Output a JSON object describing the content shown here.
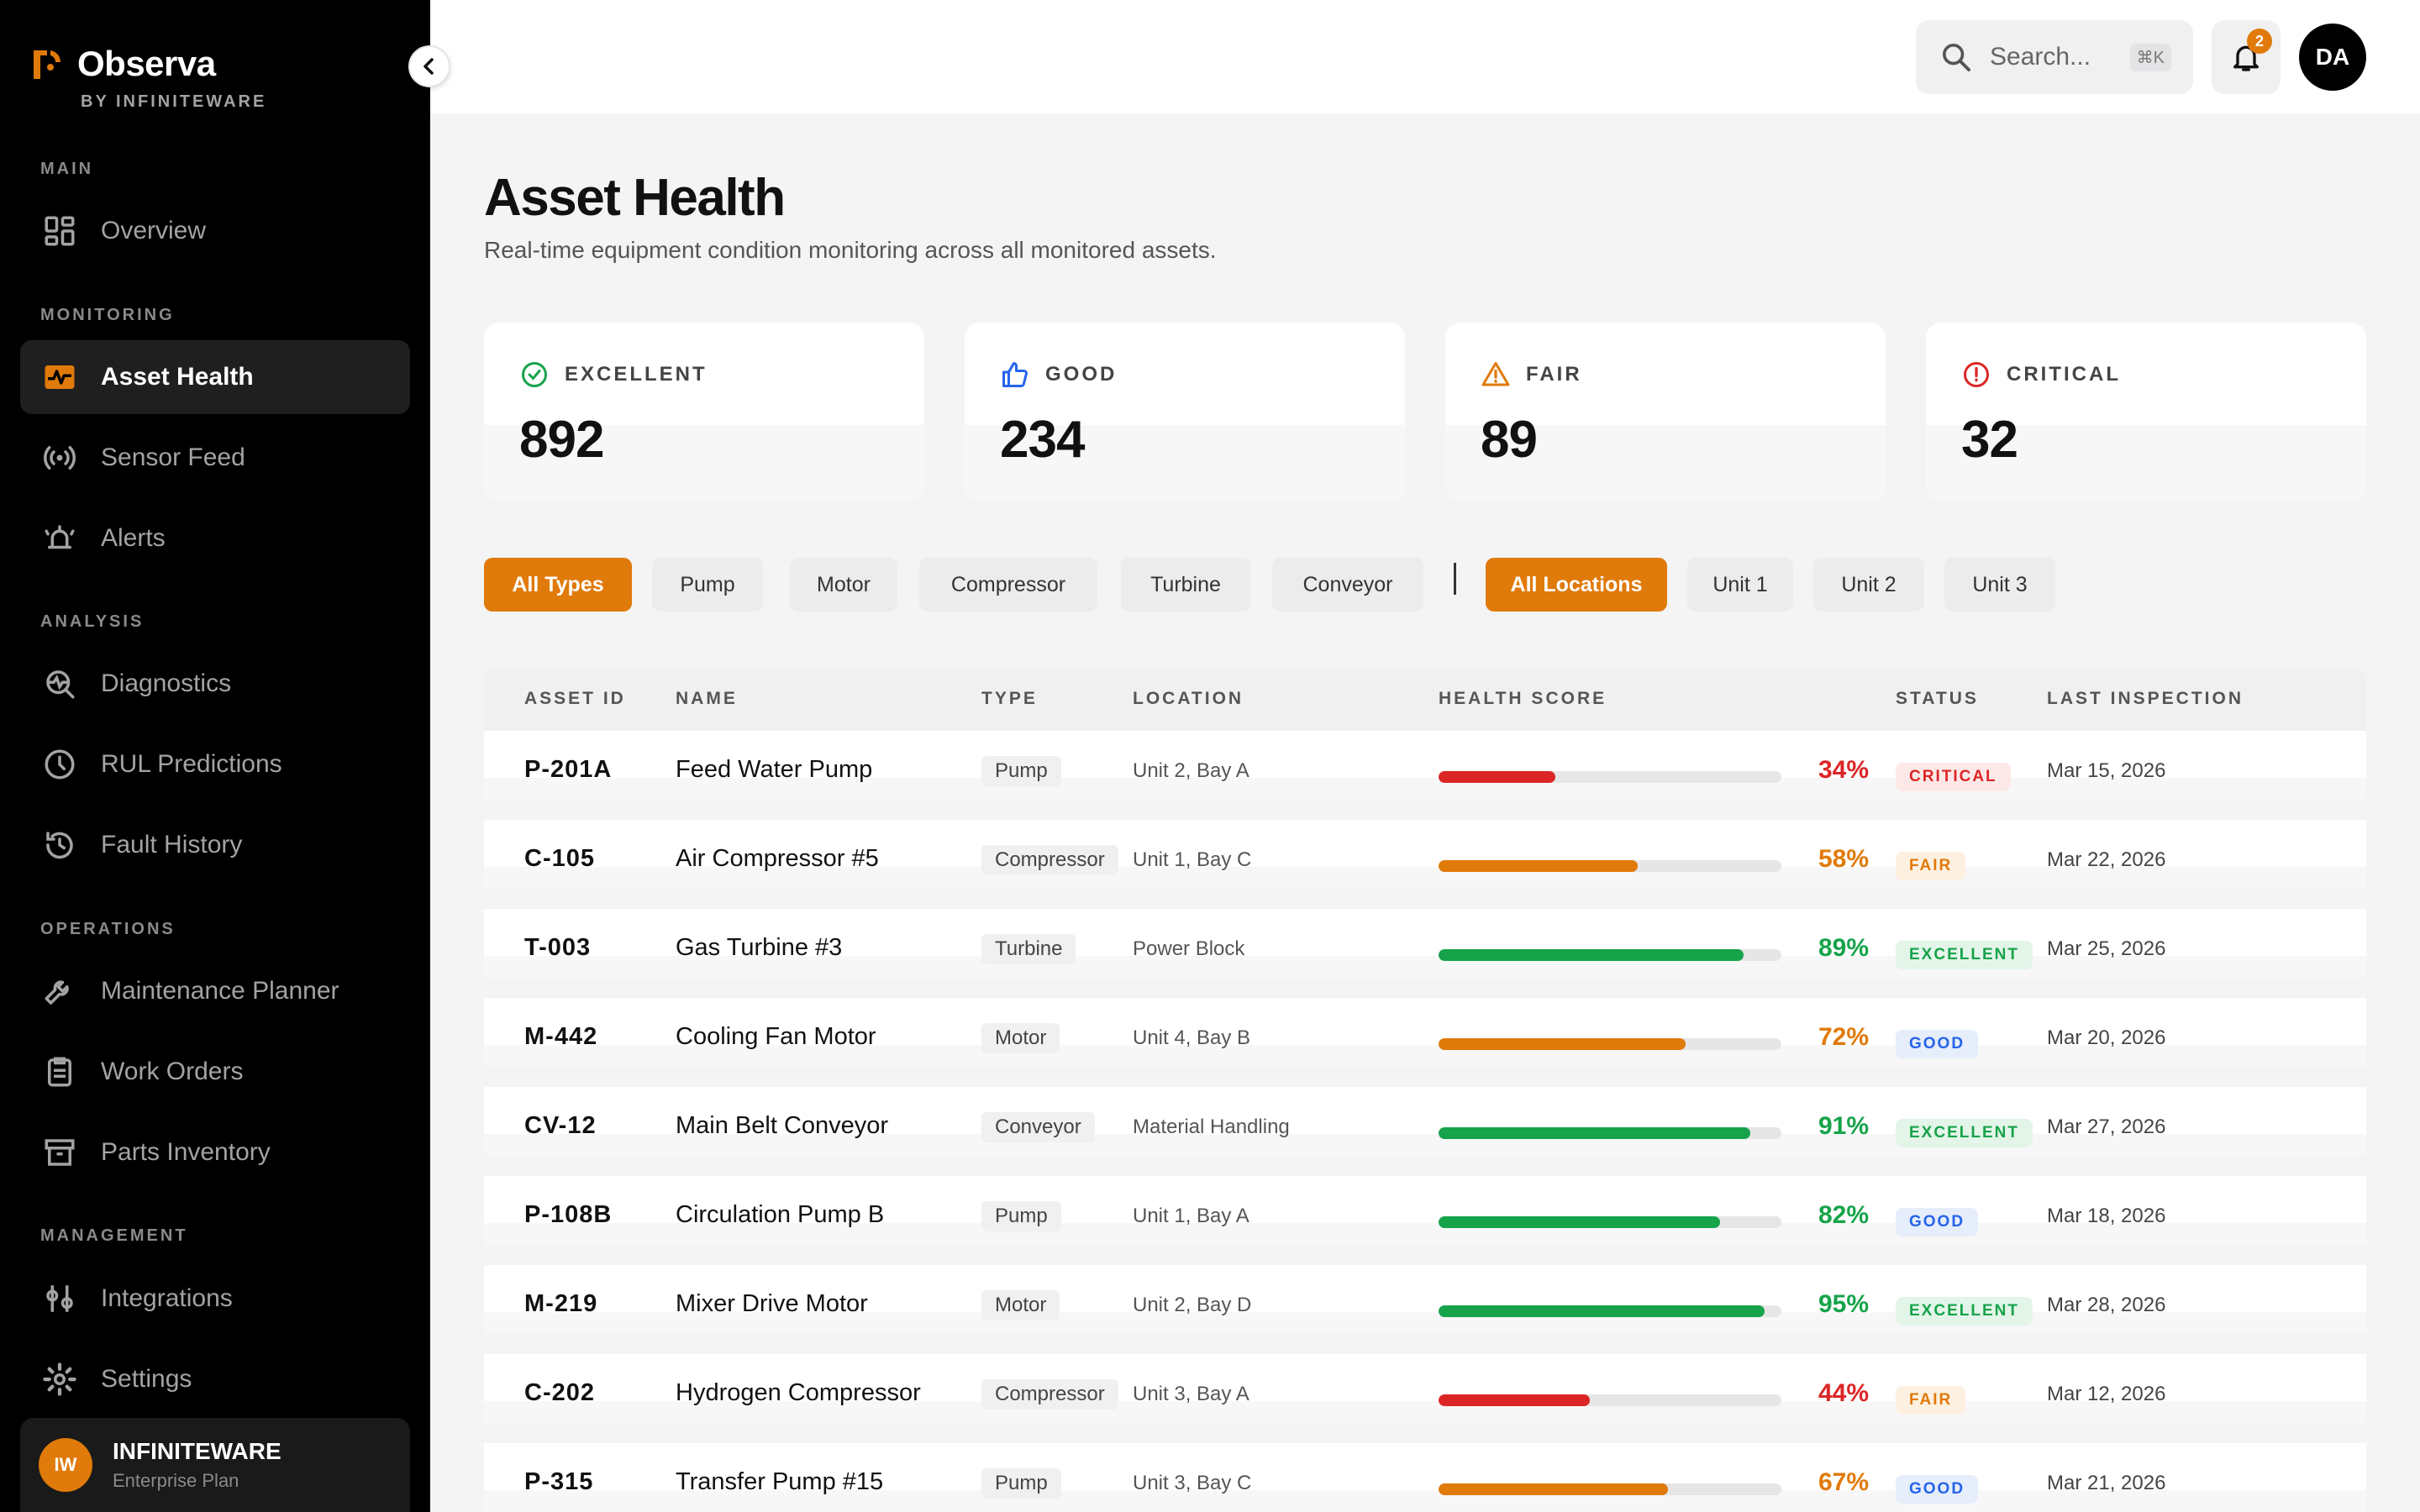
{
  "brand": {
    "name": "Observa",
    "sub": "BY INFINITEWARE",
    "accent": "#e07a0a"
  },
  "sidebar": {
    "sections": [
      {
        "label": "MAIN",
        "items": [
          {
            "label": "Overview",
            "icon": "dashboard-icon"
          }
        ]
      },
      {
        "label": "MONITORING",
        "items": [
          {
            "label": "Asset Health",
            "icon": "pulse-icon",
            "active": true
          },
          {
            "label": "Sensor Feed",
            "icon": "broadcast-icon"
          },
          {
            "label": "Alerts",
            "icon": "alarm-icon"
          }
        ]
      },
      {
        "label": "ANALYSIS",
        "items": [
          {
            "label": "Diagnostics",
            "icon": "diagnostics-icon"
          },
          {
            "label": "RUL Predictions",
            "icon": "clock-icon"
          },
          {
            "label": "Fault History",
            "icon": "history-icon"
          }
        ]
      },
      {
        "label": "OPERATIONS",
        "items": [
          {
            "label": "Maintenance Planner",
            "icon": "wrench-icon"
          },
          {
            "label": "Work Orders",
            "icon": "clipboard-icon"
          },
          {
            "label": "Parts Inventory",
            "icon": "archive-icon"
          }
        ]
      },
      {
        "label": "MANAGEMENT",
        "items": [
          {
            "label": "Integrations",
            "icon": "integrations-icon"
          },
          {
            "label": "Settings",
            "icon": "gear-icon"
          }
        ]
      }
    ],
    "user": {
      "initials": "IW",
      "name": "INFINITEWARE",
      "plan": "Enterprise Plan"
    }
  },
  "header": {
    "search_placeholder": "Search...",
    "shortcut": "⌘K",
    "notifications": "2",
    "avatar": "DA"
  },
  "page": {
    "title": "Asset Health",
    "subtitle": "Real-time equipment condition monitoring across all monitored assets."
  },
  "stats": [
    {
      "label": "EXCELLENT",
      "value": "892",
      "icon": "check-circle-icon",
      "color": "#16a34a"
    },
    {
      "label": "GOOD",
      "value": "234",
      "icon": "thumbs-up-icon",
      "color": "#2563eb"
    },
    {
      "label": "FAIR",
      "value": "89",
      "icon": "warning-triangle-icon",
      "color": "#e07a0a"
    },
    {
      "label": "CRITICAL",
      "value": "32",
      "icon": "alert-circle-icon",
      "color": "#dc2626"
    }
  ],
  "filters": {
    "types": [
      "All Types",
      "Pump",
      "Motor",
      "Compressor",
      "Turbine",
      "Conveyor"
    ],
    "locations": [
      "All Locations",
      "Unit 1",
      "Unit 2",
      "Unit 3"
    ],
    "active_type": "All Types",
    "active_location": "All Locations"
  },
  "table": {
    "columns": [
      "ASSET ID",
      "NAME",
      "TYPE",
      "LOCATION",
      "HEALTH SCORE",
      "STATUS",
      "LAST INSPECTION"
    ],
    "rows": [
      {
        "id": "P-201A",
        "name": "Feed Water Pump",
        "type": "Pump",
        "location": "Unit 2, Bay A",
        "score": 34,
        "score_label": "34%",
        "status": "CRITICAL",
        "date": "Mar 15, 2026"
      },
      {
        "id": "C-105",
        "name": "Air Compressor #5",
        "type": "Compressor",
        "location": "Unit 1, Bay C",
        "score": 58,
        "score_label": "58%",
        "status": "FAIR",
        "date": "Mar 22, 2026"
      },
      {
        "id": "T-003",
        "name": "Gas Turbine #3",
        "type": "Turbine",
        "location": "Power Block",
        "score": 89,
        "score_label": "89%",
        "status": "EXCELLENT",
        "date": "Mar 25, 2026"
      },
      {
        "id": "M-442",
        "name": "Cooling Fan Motor",
        "type": "Motor",
        "location": "Unit 4, Bay B",
        "score": 72,
        "score_label": "72%",
        "status": "GOOD",
        "date": "Mar 20, 2026"
      },
      {
        "id": "CV-12",
        "name": "Main Belt Conveyor",
        "type": "Conveyor",
        "location": "Material Handling",
        "score": 91,
        "score_label": "91%",
        "status": "EXCELLENT",
        "date": "Mar 27, 2026"
      },
      {
        "id": "P-108B",
        "name": "Circulation Pump B",
        "type": "Pump",
        "location": "Unit 1, Bay A",
        "score": 82,
        "score_label": "82%",
        "status": "GOOD",
        "date": "Mar 18, 2026"
      },
      {
        "id": "M-219",
        "name": "Mixer Drive Motor",
        "type": "Motor",
        "location": "Unit 2, Bay D",
        "score": 95,
        "score_label": "95%",
        "status": "EXCELLENT",
        "date": "Mar 28, 2026"
      },
      {
        "id": "C-202",
        "name": "Hydrogen Compressor",
        "type": "Compressor",
        "location": "Unit 3, Bay A",
        "score": 44,
        "score_label": "44%",
        "status": "FAIR",
        "date": "Mar 12, 2026"
      },
      {
        "id": "P-315",
        "name": "Transfer Pump #15",
        "type": "Pump",
        "location": "Unit 3, Bay C",
        "score": 67,
        "score_label": "67%",
        "status": "GOOD",
        "date": "Mar 21, 2026"
      }
    ]
  },
  "colors": {
    "bar_red": "#dc2626",
    "bar_orange": "#e07a0a",
    "bar_green": "#16a34a",
    "critical_text": "#dc2626",
    "critical_bg": "#fde8e8",
    "fair_text": "#e07a0a",
    "fair_bg": "#fdf0e0",
    "excellent_text": "#16a34a",
    "excellent_bg": "#e3f5e8",
    "good_text": "#2563eb",
    "good_bg": "#e6edfb"
  }
}
